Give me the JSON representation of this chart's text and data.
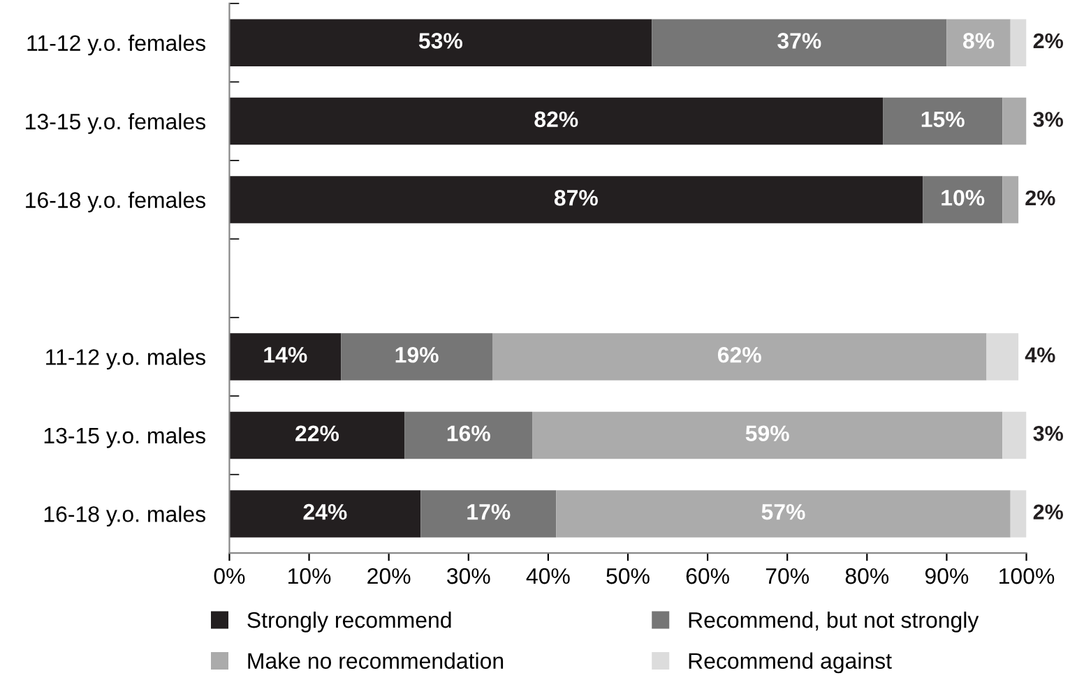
{
  "chart_data": {
    "type": "bar",
    "orientation": "horizontal",
    "stacked": true,
    "categories": [
      "11-12 y.o. females",
      "13-15 y.o. females",
      "16-18 y.o. females",
      null,
      "11-12 y.o. males",
      "13-15 y.o. males",
      "16-18 y.o. males"
    ],
    "series": [
      {
        "name": "Strongly recommend",
        "color": "#231f20",
        "values": [
          53,
          82,
          87,
          null,
          14,
          22,
          24
        ],
        "value_labels": [
          "53%",
          "82%",
          "87%",
          null,
          "14%",
          "22%",
          "24%"
        ]
      },
      {
        "name": "Recommend, but not strongly",
        "color": "#767676",
        "values": [
          37,
          15,
          10,
          null,
          19,
          16,
          17
        ],
        "value_labels": [
          "37%",
          "15%",
          "10%",
          null,
          "19%",
          "16%",
          "17%"
        ]
      },
      {
        "name": "Make no recommendation",
        "color": "#ababab",
        "values": [
          8,
          3,
          2,
          null,
          62,
          59,
          57
        ],
        "value_labels": [
          "8%",
          "3%",
          "2%",
          null,
          "62%",
          "59%",
          "57%"
        ]
      },
      {
        "name": "Recommend against",
        "color": "#dcdcdc",
        "values": [
          2,
          null,
          null,
          null,
          4,
          3,
          2
        ],
        "value_labels": [
          "2%",
          null,
          null,
          null,
          "4%",
          "3%",
          "2%"
        ]
      }
    ],
    "xlim": [
      0,
      100
    ],
    "xticks": [
      {
        "value": 0,
        "label": "0%"
      },
      {
        "value": 10,
        "label": "10%"
      },
      {
        "value": 20,
        "label": "20%"
      },
      {
        "value": 30,
        "label": "30%"
      },
      {
        "value": 40,
        "label": "40%"
      },
      {
        "value": 50,
        "label": "50%"
      },
      {
        "value": 60,
        "label": "60%"
      },
      {
        "value": 70,
        "label": "70%"
      },
      {
        "value": 80,
        "label": "80%"
      },
      {
        "value": 90,
        "label": "90%"
      },
      {
        "value": 100,
        "label": "100%"
      }
    ],
    "grid": false,
    "legend": "bottom"
  }
}
